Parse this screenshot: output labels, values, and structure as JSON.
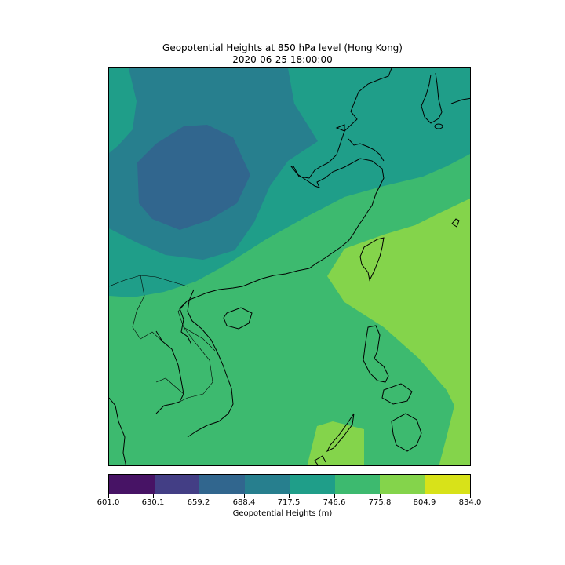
{
  "title": {
    "line1": "Geopotential Heights at 850 hPa level (Hong Kong)",
    "line2": "2020-06-25 18:00:00"
  },
  "map": {
    "variable": "Geopotential Heights",
    "units": "m",
    "pressure_level_hPa": 850,
    "region": "Hong Kong",
    "visible_levels": [
      "659.2–688.4",
      "688.4–717.5",
      "717.5–746.6",
      "746.6–775.8",
      "775.8–804.9"
    ],
    "coastline_color": "#000000"
  },
  "colorbar": {
    "label": "Geopotential Heights (m)",
    "ticks": [
      "601.0",
      "630.1",
      "659.2",
      "688.4",
      "717.5",
      "746.6",
      "775.8",
      "804.9",
      "834.0"
    ],
    "colors": [
      "#471365",
      "#433e85",
      "#31668e",
      "#277f8e",
      "#1f9e89",
      "#3dba6f",
      "#84d44b",
      "#d8e219"
    ]
  }
}
